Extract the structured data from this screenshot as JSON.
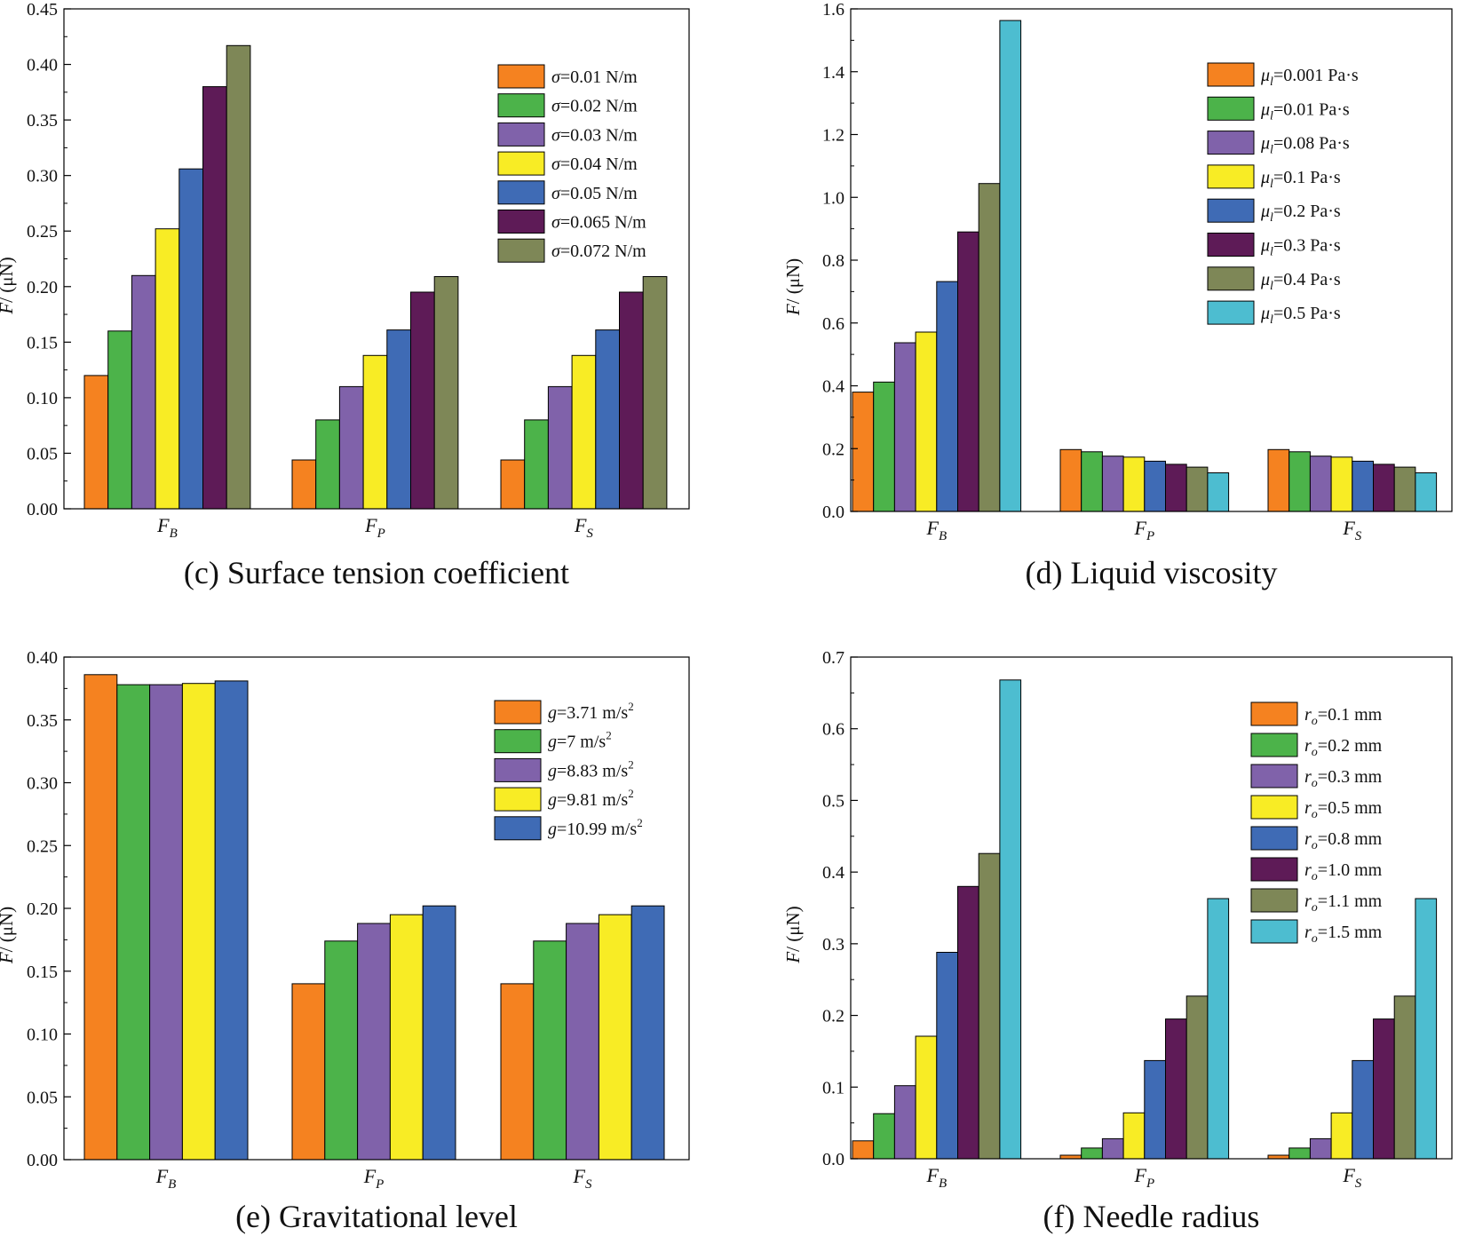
{
  "chart_data": [
    {
      "type": "bar",
      "caption": "(c) Surface tension coefficient",
      "ylabel": "F/ (μN)",
      "categories": [
        {
          "main": "F",
          "sub": "B"
        },
        {
          "main": "F",
          "sub": "P"
        },
        {
          "main": "F",
          "sub": "S"
        }
      ],
      "ylim": [
        0,
        0.45
      ],
      "yticks": [
        "0.00",
        "0.05",
        "0.10",
        "0.15",
        "0.20",
        "0.25",
        "0.30",
        "0.35",
        "0.40",
        "0.45"
      ],
      "legend": "top-right",
      "series": [
        {
          "name": {
            "sym": "σ",
            "text": "=0.01 N/m"
          },
          "color": "#F58220",
          "values": [
            0.12,
            0.044,
            0.044
          ]
        },
        {
          "name": {
            "sym": "σ",
            "text": "=0.02 N/m"
          },
          "color": "#4CB34A",
          "values": [
            0.16,
            0.08,
            0.08
          ]
        },
        {
          "name": {
            "sym": "σ",
            "text": "=0.03 N/m"
          },
          "color": "#8062AA",
          "values": [
            0.21,
            0.11,
            0.11
          ]
        },
        {
          "name": {
            "sym": "σ",
            "text": "=0.04 N/m"
          },
          "color": "#F8EC25",
          "values": [
            0.252,
            0.138,
            0.138
          ]
        },
        {
          "name": {
            "sym": "σ",
            "text": "=0.05 N/m"
          },
          "color": "#3F6BB5",
          "values": [
            0.306,
            0.161,
            0.161
          ]
        },
        {
          "name": {
            "sym": "σ",
            "text": "=0.065 N/m"
          },
          "color": "#5E1B57",
          "values": [
            0.38,
            0.195,
            0.195
          ]
        },
        {
          "name": {
            "sym": "σ",
            "text": "=0.072 N/m"
          },
          "color": "#7E8757",
          "values": [
            0.417,
            0.209,
            0.209
          ]
        }
      ]
    },
    {
      "type": "bar",
      "caption": "(d) Liquid viscosity",
      "ylabel": "F/ (μN)",
      "categories": [
        {
          "main": "F",
          "sub": "B"
        },
        {
          "main": "F",
          "sub": "P"
        },
        {
          "main": "F",
          "sub": "S"
        }
      ],
      "ylim": [
        0,
        1.6
      ],
      "yticks": [
        "0.0",
        "0.2",
        "0.4",
        "0.6",
        "0.8",
        "1.0",
        "1.2",
        "1.4",
        "1.6"
      ],
      "legend": "top-right",
      "series": [
        {
          "name": {
            "sym": "μ",
            "sub": "l",
            "text": "=0.001 Pa·s"
          },
          "color": "#F58220",
          "values": [
            0.38,
            0.197,
            0.197
          ]
        },
        {
          "name": {
            "sym": "μ",
            "sub": "l",
            "text": "=0.01 Pa·s"
          },
          "color": "#4CB34A",
          "values": [
            0.412,
            0.19,
            0.19
          ]
        },
        {
          "name": {
            "sym": "μ",
            "sub": "l",
            "text": "=0.08 Pa·s"
          },
          "color": "#8062AA",
          "values": [
            0.537,
            0.176,
            0.176
          ]
        },
        {
          "name": {
            "sym": "μ",
            "sub": "l",
            "text": "=0.1 Pa·s"
          },
          "color": "#F8EC25",
          "values": [
            0.571,
            0.173,
            0.173
          ]
        },
        {
          "name": {
            "sym": "μ",
            "sub": "l",
            "text": "=0.2 Pa·s"
          },
          "color": "#3F6BB5",
          "values": [
            0.732,
            0.16,
            0.16
          ]
        },
        {
          "name": {
            "sym": "μ",
            "sub": "l",
            "text": "=0.3 Pa·s"
          },
          "color": "#5E1B57",
          "values": [
            0.89,
            0.15,
            0.15
          ]
        },
        {
          "name": {
            "sym": "μ",
            "sub": "l",
            "text": "=0.4 Pa·s"
          },
          "color": "#7E8757",
          "values": [
            1.044,
            0.141,
            0.141
          ]
        },
        {
          "name": {
            "sym": "μ",
            "sub": "l",
            "text": "=0.5 Pa·s"
          },
          "color": "#4DBDD0",
          "values": [
            1.563,
            0.123,
            0.123
          ]
        }
      ]
    },
    {
      "type": "bar",
      "caption": "(e) Gravitational level",
      "ylabel": "F/ (μN)",
      "categories": [
        {
          "main": "F",
          "sub": "B"
        },
        {
          "main": "F",
          "sub": "P"
        },
        {
          "main": "F",
          "sub": "S"
        }
      ],
      "ylim": [
        0,
        0.4
      ],
      "yticks": [
        "0.00",
        "0.05",
        "0.10",
        "0.15",
        "0.20",
        "0.25",
        "0.30",
        "0.35",
        "0.40"
      ],
      "legend": "top-right",
      "series": [
        {
          "name": {
            "sym": "g",
            "text": "=3.71 m/s",
            "sup": "2"
          },
          "color": "#F58220",
          "values": [
            0.386,
            0.14,
            0.14
          ]
        },
        {
          "name": {
            "sym": "g",
            "text": "=7 m/s",
            "sup": "2"
          },
          "color": "#4CB34A",
          "values": [
            0.378,
            0.174,
            0.174
          ]
        },
        {
          "name": {
            "sym": "g",
            "text": "=8.83 m/s",
            "sup": "2"
          },
          "color": "#8062AA",
          "values": [
            0.378,
            0.188,
            0.188
          ]
        },
        {
          "name": {
            "sym": "g",
            "text": "=9.81 m/s",
            "sup": "2"
          },
          "color": "#F8EC25",
          "values": [
            0.379,
            0.195,
            0.195
          ]
        },
        {
          "name": {
            "sym": "g",
            "text": "=10.99 m/s",
            "sup": "2"
          },
          "color": "#3F6BB5",
          "values": [
            0.381,
            0.202,
            0.202
          ]
        }
      ]
    },
    {
      "type": "bar",
      "caption": "(f) Needle radius",
      "ylabel": "F/ (μN)",
      "categories": [
        {
          "main": "F",
          "sub": "B"
        },
        {
          "main": "F",
          "sub": "P"
        },
        {
          "main": "F",
          "sub": "S"
        }
      ],
      "ylim": [
        0,
        0.7
      ],
      "yticks": [
        "0.0",
        "0.1",
        "0.2",
        "0.3",
        "0.4",
        "0.5",
        "0.6",
        "0.7"
      ],
      "legend": "top-right",
      "series": [
        {
          "name": {
            "sym": "r",
            "sub": "o",
            "text": "=0.1 mm"
          },
          "color": "#F58220",
          "values": [
            0.025,
            0.005,
            0.005
          ]
        },
        {
          "name": {
            "sym": "r",
            "sub": "o",
            "text": "=0.2 mm"
          },
          "color": "#4CB34A",
          "values": [
            0.063,
            0.015,
            0.015
          ]
        },
        {
          "name": {
            "sym": "r",
            "sub": "o",
            "text": "=0.3 mm"
          },
          "color": "#8062AA",
          "values": [
            0.102,
            0.028,
            0.028
          ]
        },
        {
          "name": {
            "sym": "r",
            "sub": "o",
            "text": "=0.5 mm"
          },
          "color": "#F8EC25",
          "values": [
            0.171,
            0.064,
            0.064
          ]
        },
        {
          "name": {
            "sym": "r",
            "sub": "o",
            "text": "=0.8 mm"
          },
          "color": "#3F6BB5",
          "values": [
            0.288,
            0.137,
            0.137
          ]
        },
        {
          "name": {
            "sym": "r",
            "sub": "o",
            "text": "=1.0 mm"
          },
          "color": "#5E1B57",
          "values": [
            0.38,
            0.195,
            0.195
          ]
        },
        {
          "name": {
            "sym": "r",
            "sub": "o",
            "text": "=1.1 mm"
          },
          "color": "#7E8757",
          "values": [
            0.426,
            0.227,
            0.227
          ]
        },
        {
          "name": {
            "sym": "r",
            "sub": "o",
            "text": "=1.5 mm"
          },
          "color": "#4DBDD0",
          "values": [
            0.668,
            0.363,
            0.363
          ]
        }
      ]
    }
  ]
}
